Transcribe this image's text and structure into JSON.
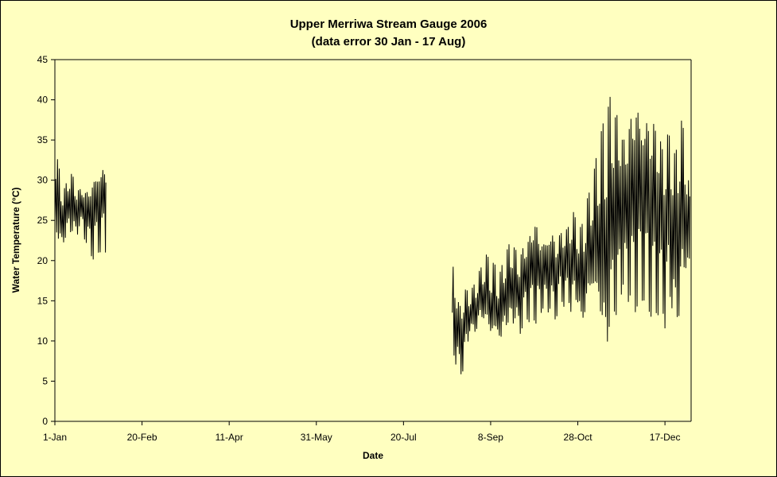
{
  "chart_data": {
    "type": "line",
    "title": "Upper Merriwa Stream Gauge 2006",
    "subtitle": "(data error 30 Jan - 17 Aug)",
    "xlabel": "Date",
    "ylabel": "Water Temperature (°C)",
    "ylim": [
      0,
      45
    ],
    "yticks": [
      0,
      5,
      10,
      15,
      20,
      25,
      30,
      35,
      40,
      45
    ],
    "xlim": [
      "2006-01-01",
      "2006-12-31"
    ],
    "xticks": [
      "1-Jan",
      "20-Feb",
      "11-Apr",
      "31-May",
      "20-Jul",
      "8-Sep",
      "28-Oct",
      "17-Dec"
    ],
    "grid": false,
    "colors": {
      "line": "#000000",
      "plot_background": "#ffffc0"
    },
    "series": [
      {
        "x": [
          "2006-01-01",
          "2006-01-03",
          "2006-01-05",
          "2006-01-07",
          "2006-01-09",
          "2006-01-11",
          "2006-01-13",
          "2006-01-15",
          "2006-01-17",
          "2006-01-19",
          "2006-01-21",
          "2006-01-23",
          "2006-01-25",
          "2006-01-27",
          "2006-01-29",
          "2006-01-30",
          "2006-08-17",
          "2006-08-19",
          "2006-08-21",
          "2006-08-23",
          "2006-08-25",
          "2006-08-27",
          "2006-08-29",
          "2006-08-31",
          "2006-09-02",
          "2006-09-04",
          "2006-09-06",
          "2006-09-08",
          "2006-09-10",
          "2006-09-12",
          "2006-09-14",
          "2006-09-16",
          "2006-09-18",
          "2006-09-20",
          "2006-09-22",
          "2006-09-24",
          "2006-09-26",
          "2006-09-28",
          "2006-09-30",
          "2006-10-02",
          "2006-10-04",
          "2006-10-06",
          "2006-10-08",
          "2006-10-10",
          "2006-10-12",
          "2006-10-14",
          "2006-10-16",
          "2006-10-18",
          "2006-10-20",
          "2006-10-22",
          "2006-10-24",
          "2006-10-26",
          "2006-10-28",
          "2006-10-30",
          "2006-11-01",
          "2006-11-03",
          "2006-11-05",
          "2006-11-07",
          "2006-11-09",
          "2006-11-11",
          "2006-11-13",
          "2006-11-15",
          "2006-11-17",
          "2006-11-19",
          "2006-11-21",
          "2006-11-23",
          "2006-11-25",
          "2006-11-27",
          "2006-11-29",
          "2006-12-01",
          "2006-12-03",
          "2006-12-05",
          "2006-12-07",
          "2006-12-09",
          "2006-12-11",
          "2006-12-13",
          "2006-12-15",
          "2006-12-17",
          "2006-12-19",
          "2006-12-21",
          "2006-12-23",
          "2006-12-25",
          "2006-12-27",
          "2006-12-29",
          "2006-12-31"
        ],
        "min": [
          23,
          21,
          21,
          22,
          23,
          23,
          22,
          24,
          23,
          22,
          21,
          20,
          21,
          21,
          22,
          21,
          9,
          7,
          5,
          6,
          8,
          11,
          10,
          11,
          12,
          12,
          11,
          10,
          10,
          10,
          9,
          11,
          11,
          11,
          12,
          10,
          11,
          13,
          12,
          13,
          12,
          13,
          14,
          13,
          14,
          12,
          13,
          15,
          14,
          15,
          13,
          14,
          14,
          10,
          12,
          14,
          15,
          14,
          12,
          9,
          6,
          8,
          13,
          11,
          14,
          16,
          14,
          15,
          13,
          14,
          15,
          15,
          14,
          13,
          13,
          13,
          14,
          11,
          15,
          13,
          10,
          11,
          16,
          17,
          18
        ],
        "max": [
          35,
          32,
          30,
          29,
          32,
          31,
          30,
          29,
          30,
          29,
          30,
          31,
          32,
          32,
          33,
          32,
          22,
          17,
          15,
          16,
          17,
          16,
          17,
          18,
          19,
          20,
          21,
          19,
          20,
          18,
          19,
          21,
          22,
          23,
          22,
          21,
          22,
          23,
          24,
          25,
          27,
          23,
          24,
          23,
          25,
          24,
          23,
          24,
          25,
          24,
          27,
          26,
          25,
          24,
          27,
          28,
          30,
          32,
          35,
          37,
          38,
          41,
          41,
          39,
          40,
          36,
          38,
          40,
          41,
          43,
          40,
          39,
          41,
          38,
          40,
          37,
          36,
          35,
          37,
          36,
          33,
          39,
          37,
          36,
          28
        ]
      }
    ]
  }
}
